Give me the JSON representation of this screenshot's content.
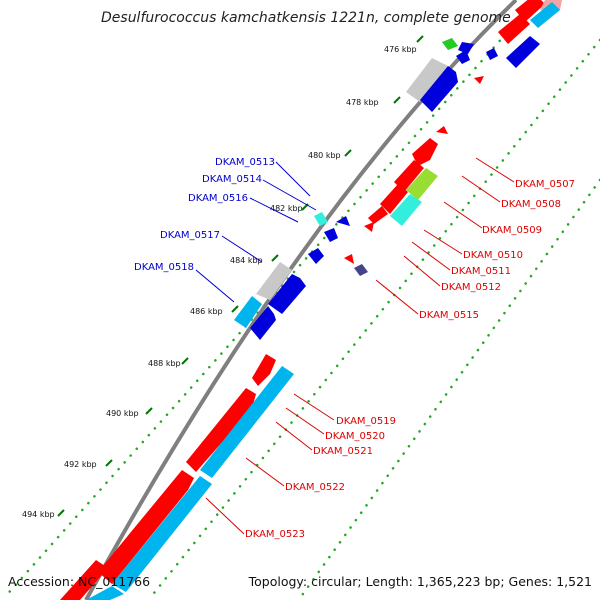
{
  "title": "Desulfurococcus kamchatkensis 1221n, complete genome",
  "accession": "Accession: NC_011766",
  "summary": "Topology: circular; Length: 1,365,223 bp; Genes: 1,521",
  "colors": {
    "forward": "#ff0000",
    "reverse": "#0000dd",
    "cyan": "#00b4ee",
    "grey": "#c8c8c8",
    "backbone": "#7f7f7f",
    "tick": "#007700",
    "dots": "#22aa22",
    "label_left": "#0000cc",
    "label_right": "#dd0000"
  },
  "ticks": [
    {
      "label": "476 kbp"
    },
    {
      "label": "478 kbp"
    },
    {
      "label": "480 kbp"
    },
    {
      "label": "482 kbp"
    },
    {
      "label": "484 kbp"
    },
    {
      "label": "486 kbp"
    },
    {
      "label": "488 kbp"
    },
    {
      "label": "490 kbp"
    },
    {
      "label": "492 kbp"
    },
    {
      "label": "494 kbp"
    }
  ],
  "left_labels": [
    {
      "text": "DKAM_0513"
    },
    {
      "text": "DKAM_0514"
    },
    {
      "text": "DKAM_0516"
    },
    {
      "text": "DKAM_0517"
    },
    {
      "text": "DKAM_0518"
    }
  ],
  "right_labels": [
    {
      "text": "DKAM_0507"
    },
    {
      "text": "DKAM_0508"
    },
    {
      "text": "DKAM_0509"
    },
    {
      "text": "DKAM_0510"
    },
    {
      "text": "DKAM_0511"
    },
    {
      "text": "DKAM_0512"
    },
    {
      "text": "DKAM_0515"
    },
    {
      "text": "DKAM_0519"
    },
    {
      "text": "DKAM_0520"
    },
    {
      "text": "DKAM_0521"
    },
    {
      "text": "DKAM_0522"
    },
    {
      "text": "DKAM_0523"
    }
  ]
}
